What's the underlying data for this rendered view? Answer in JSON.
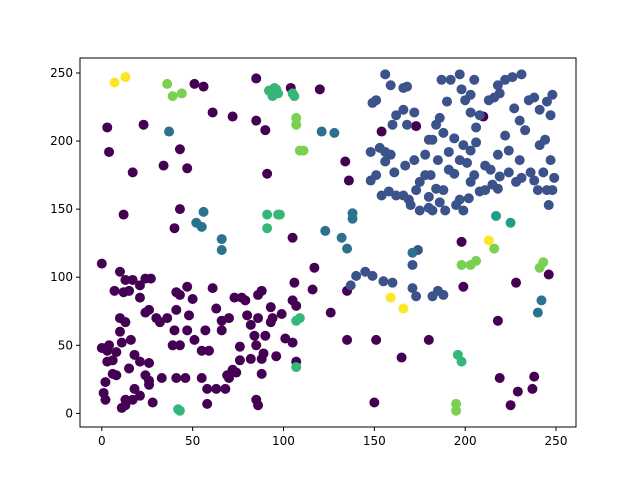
{
  "chart_data": {
    "type": "scatter",
    "xlim": [
      -12,
      261
    ],
    "ylim": [
      -10,
      261
    ],
    "xticks": [
      0,
      50,
      100,
      150,
      200,
      250
    ],
    "yticks": [
      0,
      50,
      100,
      150,
      200,
      250
    ],
    "series": [
      {
        "color": "#440154",
        "x": [
          0,
          3,
          4,
          2,
          1,
          2,
          0,
          4,
          8,
          11,
          10,
          16,
          10,
          13,
          12,
          15,
          7,
          10,
          13,
          17,
          24,
          27,
          21,
          21,
          24,
          26,
          30,
          32,
          36,
          41,
          43,
          47,
          50,
          41,
          48,
          47,
          40,
          39,
          43,
          51,
          57,
          55,
          59,
          61,
          63,
          66,
          66,
          70,
          73,
          77,
          79,
          80,
          86,
          88,
          86,
          84,
          85,
          89,
          93,
          94,
          99,
          105,
          107,
          106,
          105,
          101,
          90,
          93,
          82,
          76,
          72,
          70,
          69,
          74,
          68,
          76,
          82,
          88,
          88,
          96,
          85,
          86,
          63,
          58,
          58,
          55,
          46,
          41,
          33,
          28,
          26,
          26,
          13,
          11,
          13,
          17,
          18,
          21,
          24,
          26,
          21,
          18,
          15,
          6,
          6,
          3,
          8,
          3,
          107,
          116,
          126,
          117,
          120,
          134,
          136,
          135,
          135,
          154,
          173,
          180,
          165,
          150,
          151,
          198,
          199,
          218,
          219,
          210,
          228,
          225,
          229,
          237,
          238,
          246,
          85,
          104,
          72,
          61,
          56,
          51,
          23,
          34,
          43,
          47,
          43,
          40,
          17,
          12,
          91,
          90,
          105,
          85
        ],
        "values": [
          110,
          210,
          192,
          10,
          15,
          23,
          48,
          50,
          45,
          52,
          60,
          54,
          70,
          67,
          89,
          90,
          90,
          104,
          98,
          98,
          99,
          99,
          94,
          85,
          74,
          76,
          70,
          67,
          70,
          89,
          87,
          93,
          84,
          76,
          72,
          61,
          61,
          50,
          50,
          54,
          61,
          46,
          46,
          92,
          77,
          68,
          61,
          70,
          85,
          85,
          83,
          72,
          87,
          90,
          70,
          57,
          50,
          44,
          67,
          70,
          73,
          83,
          79,
          96,
          52,
          55,
          57,
          78,
          65,
          49,
          32,
          26,
          28,
          30,
          18,
          39,
          40,
          40,
          29,
          42,
          10,
          6,
          18,
          7,
          18,
          26,
          26,
          26,
          26,
          8,
          21,
          24,
          10,
          4,
          6,
          10,
          18,
          13,
          28,
          37,
          38,
          43,
          33,
          39,
          29,
          46,
          28,
          38,
          38,
          91,
          74,
          107,
          238,
          185,
          171,
          90,
          54,
          207,
          211,
          54,
          41,
          8,
          54,
          126,
          93,
          68,
          26,
          218,
          96,
          6,
          16,
          18,
          27,
          102,
          246,
          239,
          218,
          221,
          240,
          242,
          212,
          182,
          194,
          180,
          150,
          136,
          177,
          146,
          176,
          208,
          129,
          215
        ]
      },
      {
        "color": "#3b528b",
        "x": [
          156,
          159,
          151,
          149,
          166,
          168,
          162,
          166,
          172,
          168,
          160,
          153,
          156,
          159,
          156,
          151,
          148,
          148,
          154,
          158,
          162,
          166,
          169,
          170,
          173,
          175,
          172,
          178,
          180,
          182,
          184,
          188,
          186,
          190,
          187,
          192,
          197,
          198,
          200,
          203,
          205,
          203,
          206,
          208,
          213,
          216,
          219,
          218,
          222,
          226,
          231,
          227,
          230,
          233,
          230,
          235,
          238,
          241,
          245,
          248,
          247,
          244,
          241,
          247,
          243,
          249,
          248,
          246,
          245,
          240,
          238,
          236,
          231,
          228,
          224,
          219,
          214,
          215,
          211,
          205,
          203,
          201,
          197,
          194,
          191,
          188,
          184,
          181,
          180,
          180,
          182,
          186,
          189,
          195,
          199,
          202,
          197,
          208,
          218,
          222,
          224,
          218,
          211,
          206,
          203,
          199,
          194,
          191,
          185,
          178,
          175,
          174,
          171,
          173,
          182,
          185,
          188,
          171,
          160,
          155,
          149,
          145,
          140,
          137,
          167,
          161
        ],
        "values": [
          249,
          241,
          230,
          228,
          239,
          240,
          219,
          223,
          221,
          212,
          212,
          195,
          192,
          190,
          185,
          175,
          171,
          192,
          160,
          163,
          160,
          160,
          157,
          153,
          164,
          170,
          186,
          190,
          201,
          201,
          212,
          206,
          217,
          229,
          245,
          245,
          249,
          238,
          230,
          234,
          245,
          221,
          210,
          219,
          230,
          232,
          235,
          241,
          245,
          247,
          249,
          224,
          215,
          208,
          186,
          230,
          232,
          223,
          229,
          234,
          219,
          201,
          197,
          186,
          177,
          173,
          164,
          153,
          164,
          164,
          171,
          177,
          173,
          170,
          177,
          174,
          179,
          168,
          164,
          175,
          170,
          184,
          186,
          176,
          179,
          164,
          165,
          175,
          159,
          151,
          149,
          155,
          149,
          153,
          149,
          158,
          157,
          163,
          165,
          204,
          193,
          190,
          182,
          199,
          193,
          197,
          202,
          192,
          186,
          175,
          149,
          120,
          92,
          86,
          86,
          90,
          87,
          109,
          96,
          97,
          101,
          104,
          101,
          94,
          182,
          177
        ]
      },
      {
        "color": "#2c728e",
        "x": [
          37,
          56,
          55,
          52,
          66,
          66,
          123,
          132,
          135,
          138,
          138,
          121,
          128,
          171,
          242,
          240
        ],
        "values": [
          207,
          148,
          137,
          140,
          128,
          120,
          134,
          129,
          121,
          143,
          147,
          207,
          206,
          118,
          83,
          74
        ]
      },
      {
        "color": "#1f9e89",
        "x": [
          217,
          225
        ],
        "values": [
          145,
          140
        ]
      },
      {
        "color": "#35b779",
        "x": [
          92,
          96,
          94,
          97,
          95,
          105,
          106,
          91,
          97,
          98,
          91,
          107,
          109,
          107,
          42,
          43,
          198,
          196
        ],
        "values": [
          237,
          238,
          233,
          235,
          239,
          235,
          233,
          146,
          146,
          146,
          136,
          68,
          70,
          34,
          3,
          2,
          38,
          43
        ]
      },
      {
        "color": "#7ad151",
        "x": [
          39,
          44,
          36,
          107,
          107,
          109,
          111,
          198,
          203,
          206,
          241,
          243,
          216,
          195,
          195
        ],
        "values": [
          233,
          235,
          242,
          217,
          212,
          193,
          193,
          109,
          109,
          112,
          107,
          111,
          121,
          7,
          2
        ]
      },
      {
        "color": "#fde725",
        "x": [
          7,
          13,
          159,
          166,
          213
        ],
        "values": [
          243,
          247,
          85,
          77,
          127
        ]
      }
    ]
  }
}
